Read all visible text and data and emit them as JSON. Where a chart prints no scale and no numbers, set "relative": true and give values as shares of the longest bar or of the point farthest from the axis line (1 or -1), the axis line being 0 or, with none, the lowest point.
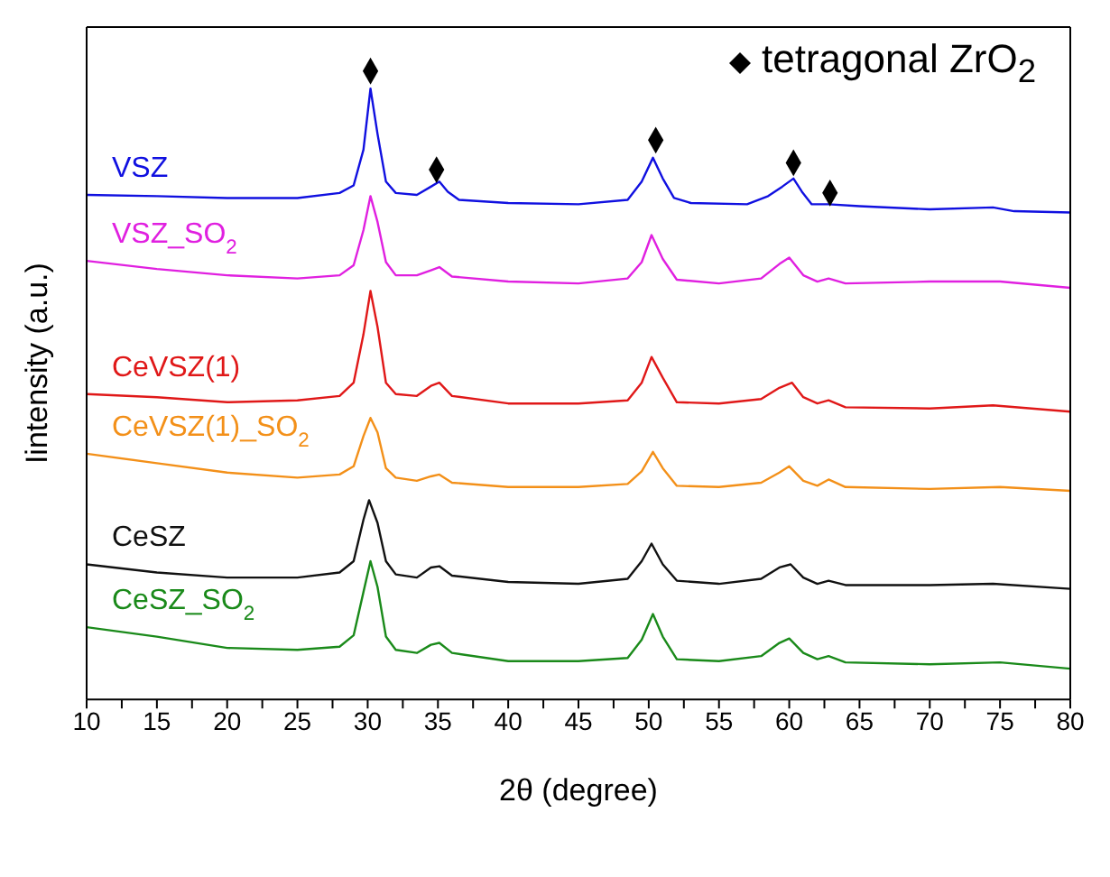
{
  "chart_data": {
    "type": "line",
    "relative": true,
    "xlabel": "2θ (degree)",
    "ylabel": "Iintensity (a.u.)",
    "xlim": [
      10,
      80
    ],
    "xticks": [
      10,
      {
        "value": 12.5,
        "label": null
      },
      15,
      {
        "value": 17.5,
        "label": null
      },
      20,
      {
        "value": 22.5,
        "label": null
      },
      25,
      {
        "value": 27.5,
        "label": null
      },
      30,
      {
        "value": 32.5,
        "label": null
      },
      35,
      {
        "value": 37.5,
        "label": null
      },
      40,
      {
        "value": 42.5,
        "label": null
      },
      45,
      {
        "value": 47.5,
        "label": null
      },
      50,
      {
        "value": 52.5,
        "label": null
      },
      55,
      {
        "value": 57.5,
        "label": null
      },
      60,
      {
        "value": 62.5,
        "label": null
      },
      65,
      {
        "value": 67.5,
        "label": null
      },
      70,
      {
        "value": 72.5,
        "label": null
      },
      75,
      {
        "value": 77.5,
        "label": null
      },
      80
    ],
    "legend": "top right",
    "series": [
      {
        "name": "VSZ",
        "color": "#1010e0",
        "x": [
          10,
          15,
          20,
          25,
          28,
          29,
          29.7,
          30.2,
          30.7,
          31.3,
          32,
          33.5,
          34.5,
          35.1,
          35.7,
          36.5,
          40,
          45,
          48.5,
          49.5,
          50.3,
          51,
          51.8,
          53,
          57,
          58.5,
          59.5,
          60.3,
          60.9,
          61.6,
          62.8,
          65,
          70,
          74.5,
          76,
          80
        ],
        "values": [
          0.803,
          0.801,
          0.798,
          0.798,
          0.806,
          0.818,
          0.875,
          0.972,
          0.9,
          0.824,
          0.806,
          0.803,
          0.816,
          0.824,
          0.808,
          0.795,
          0.79,
          0.788,
          0.795,
          0.824,
          0.862,
          0.829,
          0.798,
          0.79,
          0.788,
          0.801,
          0.816,
          0.829,
          0.808,
          0.788,
          0.788,
          0.785,
          0.78,
          0.783,
          0.777,
          0.775
        ]
      },
      {
        "name": "VSZ_SO$_{2}$",
        "color": "#e020e0",
        "x": [
          10,
          15,
          20,
          25,
          28,
          29,
          29.7,
          30.2,
          30.7,
          31.3,
          32,
          33.5,
          34.5,
          35.1,
          36,
          40,
          45,
          48.5,
          49.5,
          50.2,
          51,
          52,
          55,
          58,
          59.3,
          60,
          61,
          62,
          62.8,
          64,
          70,
          75,
          80
        ],
        "values": [
          0.698,
          0.685,
          0.675,
          0.67,
          0.675,
          0.691,
          0.747,
          0.801,
          0.76,
          0.696,
          0.675,
          0.675,
          0.683,
          0.688,
          0.673,
          0.665,
          0.662,
          0.67,
          0.696,
          0.739,
          0.701,
          0.668,
          0.662,
          0.67,
          0.693,
          0.703,
          0.675,
          0.665,
          0.67,
          0.662,
          0.665,
          0.665,
          0.655
        ]
      },
      {
        "name": "CeVSZ(1)",
        "color": "#e01818",
        "x": [
          10,
          15,
          20,
          25,
          28,
          29,
          29.7,
          30.2,
          30.7,
          31.3,
          32,
          33.5,
          34.5,
          35.1,
          36,
          40,
          45,
          48.5,
          49.5,
          50.2,
          51,
          52,
          55,
          58,
          59.3,
          60.2,
          61,
          62,
          62.8,
          64,
          70,
          74.5,
          80
        ],
        "values": [
          0.486,
          0.481,
          0.473,
          0.476,
          0.483,
          0.504,
          0.581,
          0.65,
          0.593,
          0.504,
          0.486,
          0.483,
          0.499,
          0.504,
          0.483,
          0.471,
          0.471,
          0.476,
          0.504,
          0.545,
          0.512,
          0.473,
          0.471,
          0.478,
          0.496,
          0.504,
          0.481,
          0.471,
          0.476,
          0.465,
          0.463,
          0.468,
          0.458
        ]
      },
      {
        "name": "CeVSZ(1)_SO$_{2}$",
        "color": "#f39019",
        "x": [
          10,
          15,
          20,
          25,
          28,
          29,
          29.7,
          30.2,
          30.7,
          31.3,
          32,
          33.5,
          34.5,
          35.1,
          36,
          40,
          45,
          48.5,
          49.5,
          50.3,
          51,
          52,
          55,
          58,
          59.3,
          60,
          61,
          62,
          62.8,
          64,
          70,
          75,
          80
        ],
        "values": [
          0.391,
          0.376,
          0.361,
          0.353,
          0.358,
          0.371,
          0.419,
          0.448,
          0.425,
          0.368,
          0.353,
          0.348,
          0.355,
          0.358,
          0.345,
          0.338,
          0.338,
          0.343,
          0.363,
          0.394,
          0.368,
          0.34,
          0.338,
          0.345,
          0.361,
          0.371,
          0.348,
          0.34,
          0.35,
          0.338,
          0.335,
          0.338,
          0.332
        ]
      },
      {
        "name": "CeSZ",
        "color": "#111111",
        "x": [
          10,
          15,
          20,
          25,
          28,
          29,
          29.7,
          30.1,
          30.7,
          31.3,
          32,
          33.5,
          34.5,
          35.1,
          36,
          40,
          45,
          48.5,
          49.5,
          50.2,
          51,
          52,
          55,
          58,
          59.3,
          60.1,
          61,
          62,
          62.8,
          64,
          70,
          74.5,
          80
        ],
        "values": [
          0.215,
          0.202,
          0.194,
          0.194,
          0.202,
          0.22,
          0.286,
          0.317,
          0.281,
          0.22,
          0.199,
          0.194,
          0.21,
          0.212,
          0.197,
          0.187,
          0.184,
          0.192,
          0.22,
          0.248,
          0.215,
          0.189,
          0.184,
          0.192,
          0.21,
          0.215,
          0.194,
          0.184,
          0.189,
          0.182,
          0.182,
          0.184,
          0.176
        ]
      },
      {
        "name": "CeSZ_SO$_{2}$",
        "color": "#1a8a1a",
        "x": [
          10,
          15,
          20,
          25,
          28,
          29,
          29.7,
          30.2,
          30.7,
          31.3,
          32,
          33.5,
          34.5,
          35.1,
          36,
          40,
          45,
          48.5,
          49.5,
          50.3,
          51,
          52,
          55,
          58,
          59.3,
          60,
          61,
          62,
          62.8,
          64,
          70,
          75,
          80
        ],
        "values": [
          0.115,
          0.1,
          0.082,
          0.079,
          0.084,
          0.102,
          0.171,
          0.22,
          0.179,
          0.1,
          0.079,
          0.074,
          0.087,
          0.09,
          0.074,
          0.061,
          0.061,
          0.066,
          0.095,
          0.136,
          0.1,
          0.064,
          0.061,
          0.069,
          0.09,
          0.097,
          0.074,
          0.064,
          0.069,
          0.059,
          0.056,
          0.059,
          0.049
        ]
      },
      {
        "name": "tetragonal ZrO$_{2}$",
        "type": "scatter",
        "marker": "diamond",
        "color": "#000000",
        "x": [
          30.2,
          34.9,
          50.5,
          60.3,
          62.9
        ],
        "values": [
          1.0,
          0.843,
          0.89,
          0.854,
          0.806
        ]
      }
    ]
  }
}
